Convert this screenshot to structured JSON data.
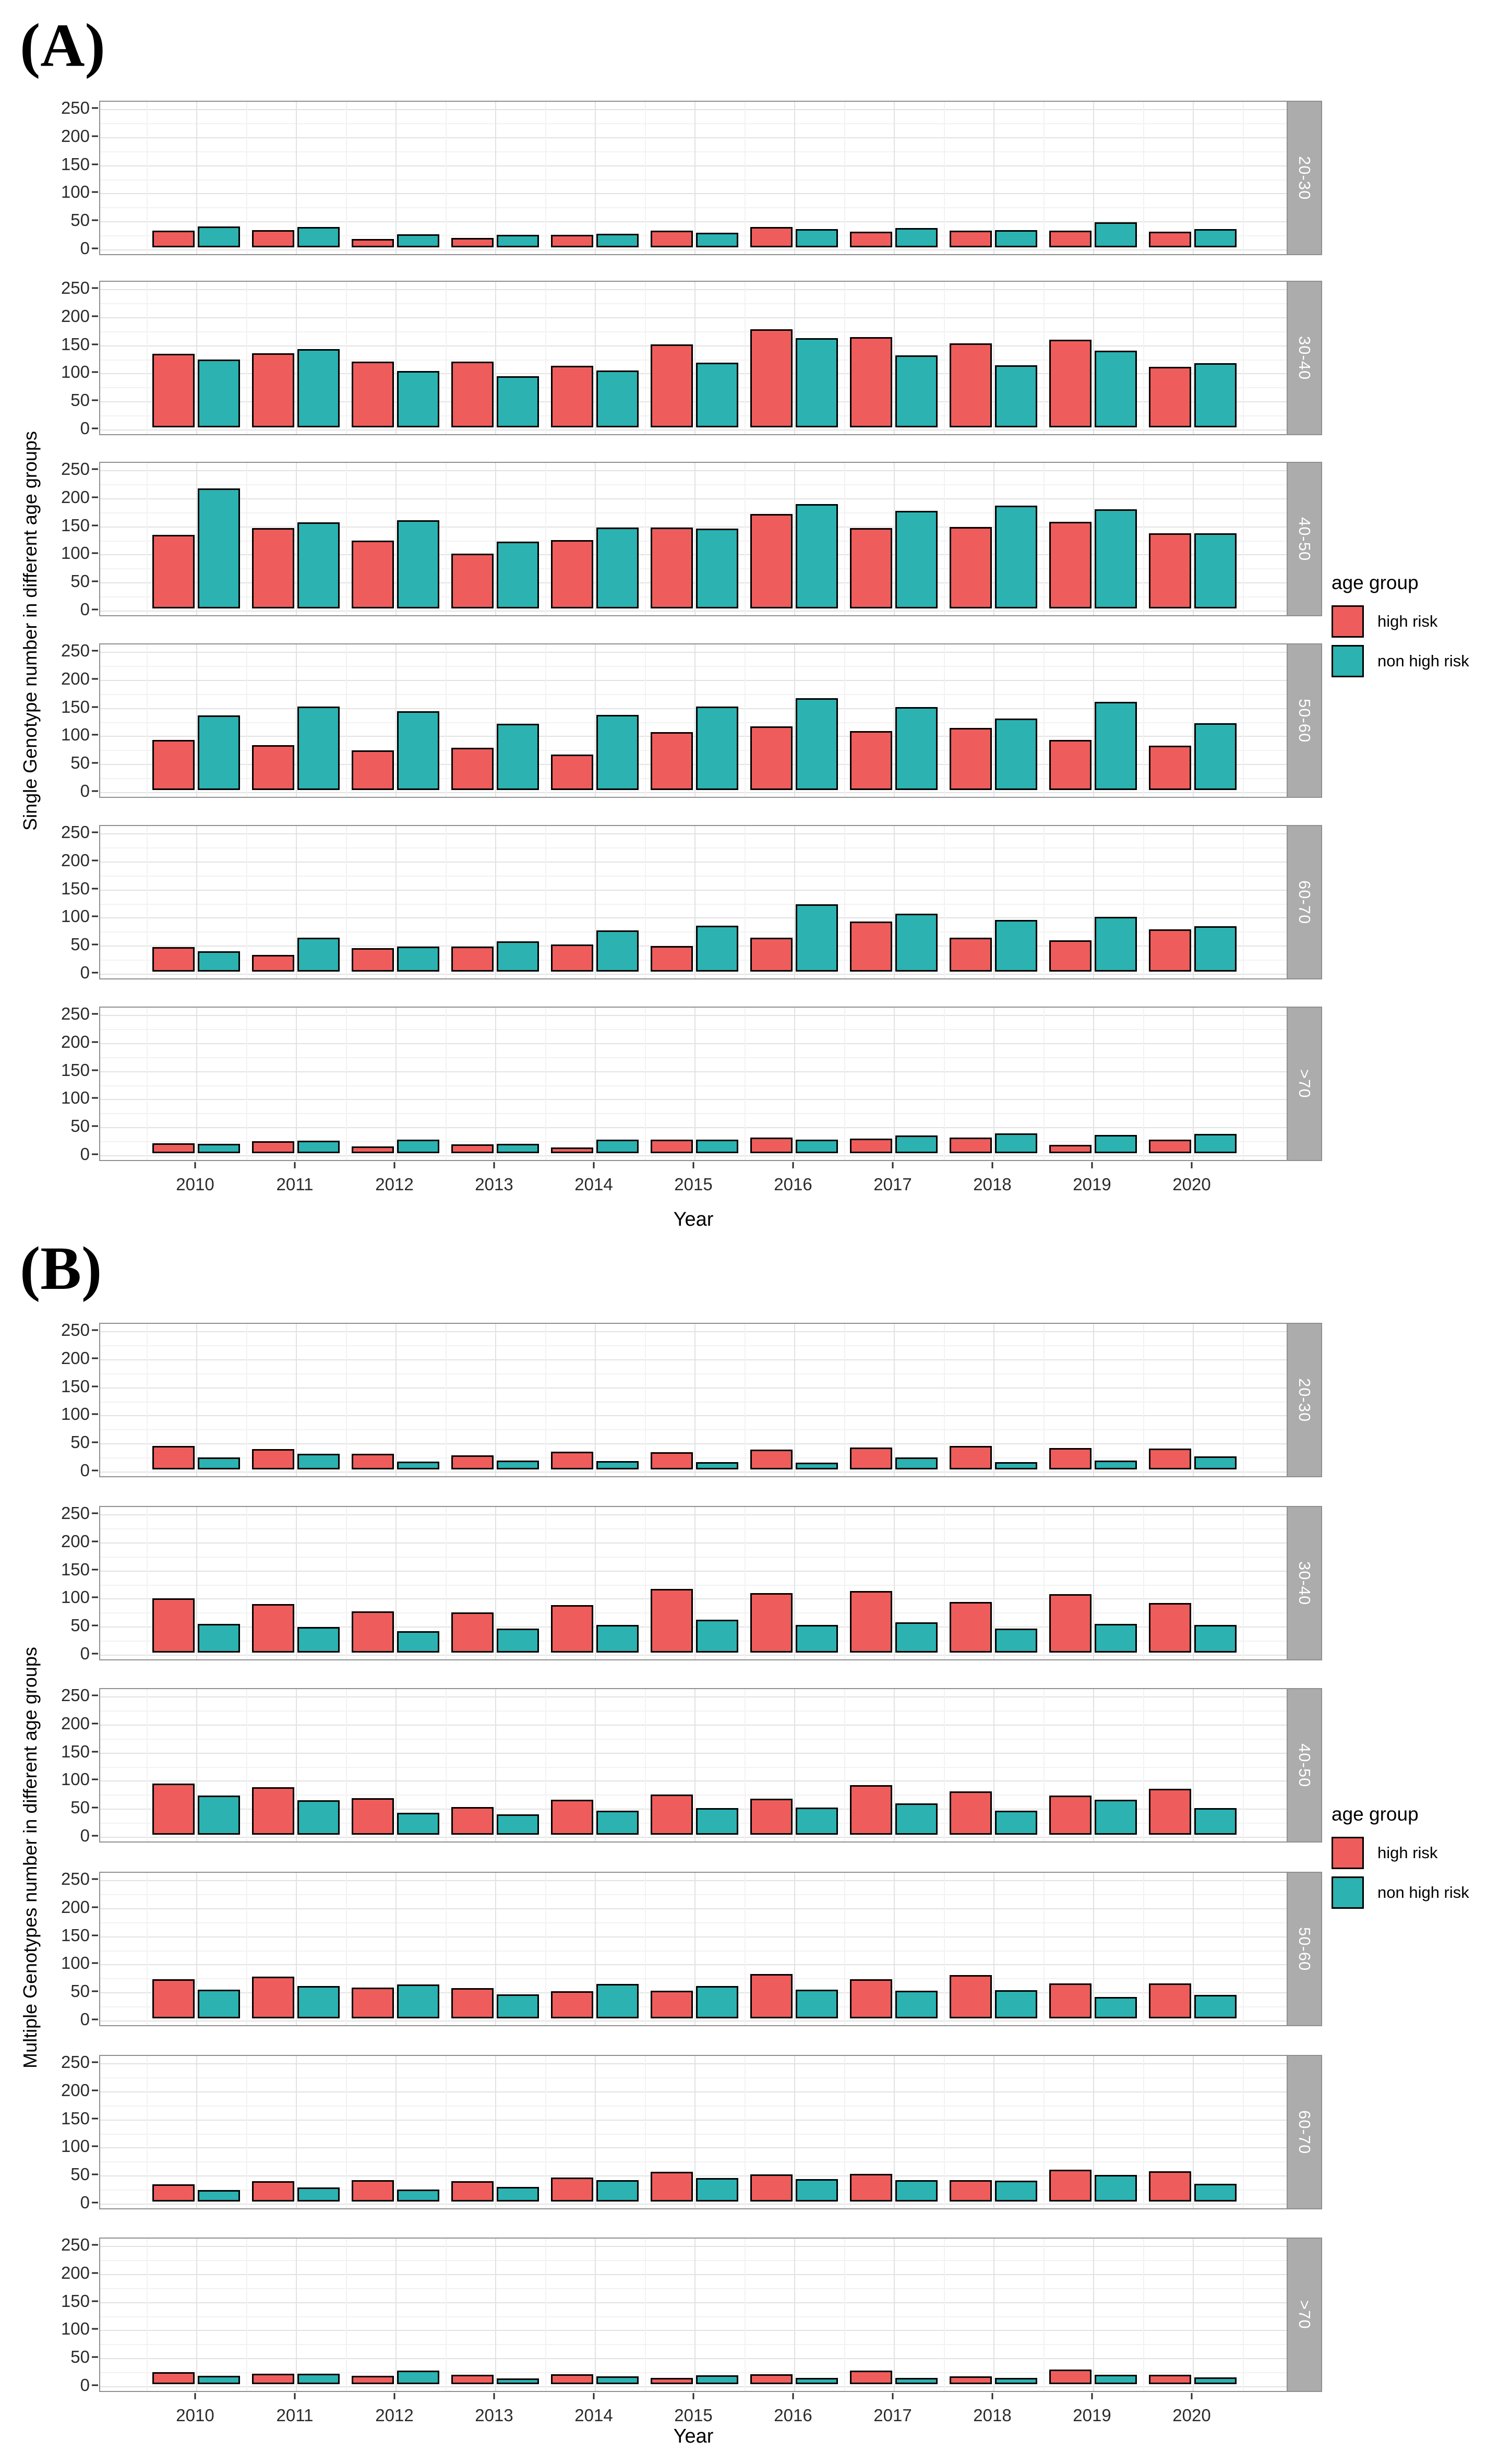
{
  "figure": {
    "panel_a_label": "(A)",
    "panel_b_label": "(B)"
  },
  "legend": {
    "title": "age group",
    "items": [
      {
        "label": "high risk",
        "color": "#ee5d5b"
      },
      {
        "label": "non high risk",
        "color": "#2bb2b1"
      }
    ]
  },
  "colors": {
    "high_risk": "#ee5d5b",
    "non_high_risk": "#2bb2b1",
    "bar_border": "#000000",
    "strip_bg": "#acacac",
    "strip_text": "#ffffff",
    "panel_border": "#8f8f8f"
  },
  "axes": {
    "yticks": [
      0,
      50,
      100,
      150,
      200,
      250
    ],
    "ylim": [
      0,
      250
    ],
    "x_title": "Year"
  },
  "chart_data": [
    {
      "type": "bar",
      "title": "(A)",
      "ylabel": "Single Genotype number in different age groups",
      "xlabel": "Year",
      "categories": [
        "2010",
        "2011",
        "2012",
        "2013",
        "2014",
        "2015",
        "2016",
        "2017",
        "2018",
        "2019",
        "2020"
      ],
      "ylim": [
        0,
        250
      ],
      "yticks": [
        0,
        50,
        100,
        150,
        200,
        250
      ],
      "legend_position": "right",
      "grid": true,
      "facets": [
        {
          "label": "20-30",
          "series": [
            {
              "name": "high risk",
              "values": [
                30,
                31,
                15,
                17,
                22,
                30,
                36,
                28,
                30,
                30,
                28
              ]
            },
            {
              "name": "non high risk",
              "values": [
                37,
                36,
                23,
                22,
                24,
                26,
                33,
                34,
                31,
                45,
                33
              ]
            }
          ]
        },
        {
          "label": "30-40",
          "series": [
            {
              "name": "high risk",
              "values": [
                131,
                132,
                117,
                117,
                110,
                148,
                175,
                161,
                150,
                156,
                108
              ]
            },
            {
              "name": "non high risk",
              "values": [
                121,
                139,
                100,
                91,
                101,
                115,
                159,
                128,
                111,
                137,
                114
              ]
            }
          ]
        },
        {
          "label": "40-50",
          "series": [
            {
              "name": "high risk",
              "values": [
                131,
                143,
                121,
                98,
                122,
                144,
                168,
                143,
                145,
                154,
                134
              ]
            },
            {
              "name": "non high risk",
              "values": [
                214,
                153,
                157,
                119,
                144,
                142,
                186,
                174,
                183,
                177,
                134
              ]
            }
          ]
        },
        {
          "label": "50-60",
          "series": [
            {
              "name": "high risk",
              "values": [
                89,
                80,
                71,
                75,
                63,
                103,
                113,
                105,
                111,
                89,
                79
              ]
            },
            {
              "name": "non high risk",
              "values": [
                133,
                149,
                140,
                118,
                134,
                149,
                164,
                148,
                127,
                157,
                119
              ]
            }
          ]
        },
        {
          "label": "60-70",
          "series": [
            {
              "name": "high risk",
              "values": [
                44,
                30,
                42,
                45,
                48,
                46,
                60,
                89,
                60,
                56,
                75
              ]
            },
            {
              "name": "non high risk",
              "values": [
                36,
                60,
                45,
                54,
                73,
                82,
                120,
                103,
                92,
                98,
                81
              ]
            }
          ]
        },
        {
          "label": ">70",
          "series": [
            {
              "name": "high risk",
              "values": [
                18,
                21,
                12,
                16,
                10,
                24,
                28,
                26,
                28,
                15,
                24
              ]
            },
            {
              "name": "non high risk",
              "values": [
                17,
                22,
                24,
                17,
                24,
                24,
                24,
                32,
                35,
                33,
                34
              ]
            }
          ]
        }
      ]
    },
    {
      "type": "bar",
      "title": "(B)",
      "ylabel": "Multiple Genotypes number in different age groups",
      "xlabel": "Year",
      "categories": [
        "2010",
        "2011",
        "2012",
        "2013",
        "2014",
        "2015",
        "2016",
        "2017",
        "2018",
        "2019",
        "2020"
      ],
      "ylim": [
        0,
        250
      ],
      "yticks": [
        0,
        50,
        100,
        150,
        200,
        250
      ],
      "legend_position": "right",
      "grid": true,
      "facets": [
        {
          "label": "20-30",
          "series": [
            {
              "name": "high risk",
              "values": [
                42,
                36,
                28,
                25,
                32,
                31,
                35,
                39,
                42,
                38,
                37
              ]
            },
            {
              "name": "non high risk",
              "values": [
                21,
                28,
                14,
                16,
                15,
                13,
                12,
                21,
                13,
                16,
                23
              ]
            }
          ]
        },
        {
          "label": "30-40",
          "series": [
            {
              "name": "high risk",
              "values": [
                97,
                86,
                73,
                72,
                85,
                113,
                106,
                110,
                90,
                104,
                88
              ]
            },
            {
              "name": "non high risk",
              "values": [
                51,
                46,
                38,
                43,
                49,
                59,
                49,
                54,
                43,
                51,
                49
              ]
            }
          ]
        },
        {
          "label": "40-50",
          "series": [
            {
              "name": "high risk",
              "values": [
                91,
                85,
                65,
                49,
                62,
                72,
                64,
                88,
                77,
                70,
                82
              ]
            },
            {
              "name": "non high risk",
              "values": [
                70,
                61,
                39,
                36,
                43,
                47,
                48,
                56,
                43,
                62,
                47
              ]
            }
          ]
        },
        {
          "label": "50-60",
          "series": [
            {
              "name": "high risk",
              "values": [
                70,
                74,
                55,
                54,
                48,
                49,
                79,
                70,
                77,
                62,
                62
              ]
            },
            {
              "name": "non high risk",
              "values": [
                51,
                58,
                60,
                43,
                61,
                58,
                51,
                49,
                50,
                38,
                42
              ]
            }
          ]
        },
        {
          "label": "60-70",
          "series": [
            {
              "name": "high risk",
              "values": [
                31,
                36,
                38,
                36,
                43,
                53,
                48,
                49,
                38,
                57,
                54
              ]
            },
            {
              "name": "non high risk",
              "values": [
                20,
                25,
                21,
                26,
                38,
                42,
                40,
                38,
                37,
                47,
                32
              ]
            }
          ]
        },
        {
          "label": ">70",
          "series": [
            {
              "name": "high risk",
              "values": [
                21,
                19,
                15,
                17,
                18,
                11,
                18,
                24,
                14,
                26,
                17
              ]
            },
            {
              "name": "non high risk",
              "values": [
                15,
                19,
                24,
                10,
                14,
                16,
                11,
                11,
                11,
                17,
                12
              ]
            }
          ]
        }
      ]
    }
  ]
}
